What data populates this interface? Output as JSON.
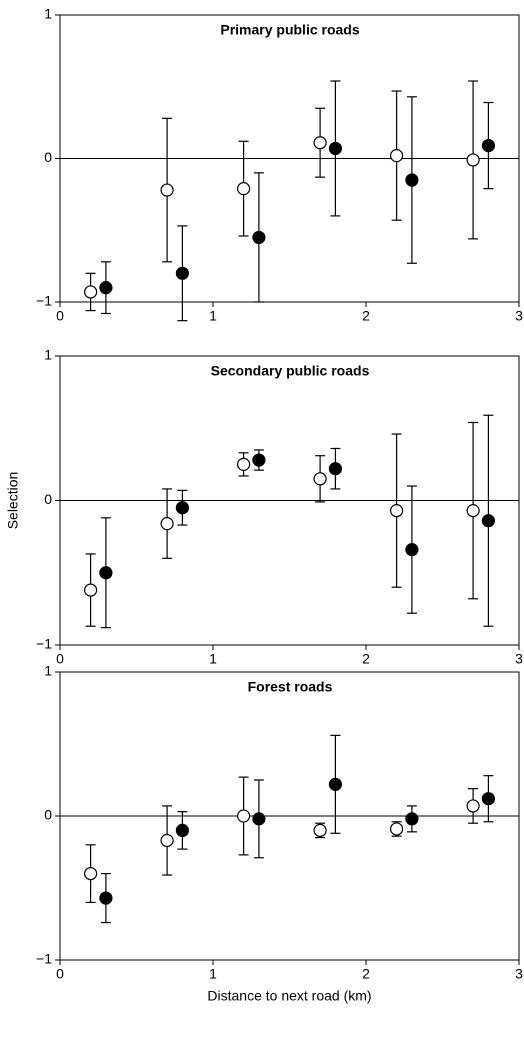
{
  "chart_data": [
    {
      "type": "scatter",
      "title": "Primary public roads",
      "xlim": [
        0,
        3
      ],
      "xticks": [
        0,
        1,
        2,
        3
      ],
      "ylim": [
        -1,
        1
      ],
      "yticks": [
        {
          "value": -1,
          "label": "−1"
        },
        0,
        1
      ],
      "hline": 0,
      "series": [
        {
          "marker_fill": "#ffffff",
          "x": [
            0.2,
            0.7,
            1.2,
            1.7,
            2.2,
            2.7
          ],
          "values": [
            -0.93,
            -0.22,
            -0.21,
            0.11,
            0.02,
            -0.01
          ],
          "errors": [
            0.13,
            0.5,
            0.33,
            0.24,
            0.45,
            0.55
          ]
        },
        {
          "marker_fill": "#000000",
          "x": [
            0.3,
            0.8,
            1.3,
            1.8,
            2.3,
            2.8
          ],
          "values": [
            -0.9,
            -0.8,
            -0.55,
            0.07,
            -0.15,
            0.09
          ],
          "errors": [
            0.18,
            0.33,
            0.45,
            0.47,
            0.58,
            0.3
          ]
        }
      ]
    },
    {
      "type": "scatter",
      "title": "Secondary public roads",
      "ylabel": "Selection",
      "xlim": [
        0,
        3
      ],
      "xticks": [
        0,
        1,
        2,
        3
      ],
      "ylim": [
        -1,
        1
      ],
      "yticks": [
        {
          "value": -1,
          "label": "−1"
        },
        0,
        1
      ],
      "hline": 0,
      "series": [
        {
          "marker_fill": "#ffffff",
          "x": [
            0.2,
            0.7,
            1.2,
            1.7,
            2.2,
            2.7
          ],
          "values": [
            -0.62,
            -0.16,
            0.25,
            0.15,
            -0.07,
            -0.07
          ],
          "errors": [
            0.25,
            0.24,
            0.08,
            0.16,
            0.53,
            0.61
          ]
        },
        {
          "marker_fill": "#000000",
          "x": [
            0.3,
            0.8,
            1.3,
            1.8,
            2.3,
            2.8
          ],
          "values": [
            -0.5,
            -0.05,
            0.28,
            0.22,
            -0.34,
            -0.14
          ],
          "errors": [
            0.38,
            0.12,
            0.07,
            0.14,
            0.44,
            0.73
          ]
        }
      ]
    },
    {
      "type": "scatter",
      "title": "Forest roads",
      "xlabel": "Distance to next road (km)",
      "xlim": [
        0,
        3
      ],
      "xticks": [
        0,
        1,
        2,
        3
      ],
      "ylim": [
        -1,
        1
      ],
      "yticks": [
        {
          "value": -1,
          "label": "−1"
        },
        0,
        1
      ],
      "hline": 0,
      "series": [
        {
          "marker_fill": "#ffffff",
          "x": [
            0.2,
            0.7,
            1.2,
            1.7,
            2.2,
            2.7
          ],
          "values": [
            -0.4,
            -0.17,
            0,
            -0.1,
            -0.09,
            0.07
          ],
          "errors": [
            0.2,
            0.24,
            0.27,
            0.05,
            0.05,
            0.12
          ]
        },
        {
          "marker_fill": "#000000",
          "x": [
            0.3,
            0.8,
            1.3,
            1.8,
            2.3,
            2.8
          ],
          "values": [
            -0.57,
            -0.1,
            -0.02,
            0.22,
            -0.02,
            0.12
          ],
          "errors": [
            0.17,
            0.13,
            0.27,
            0.34,
            0.09,
            0.16
          ]
        }
      ]
    }
  ]
}
